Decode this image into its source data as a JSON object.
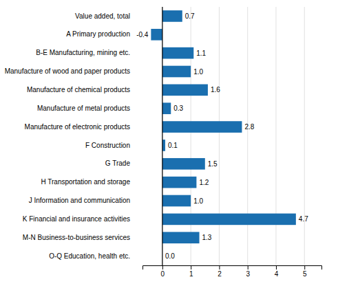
{
  "chart_data": {
    "type": "bar",
    "orientation": "horizontal",
    "categories": [
      "O-Q Education, health etc.",
      "M-N Business-to-business services",
      "K Financial and insurance activities",
      "J Information and communication",
      "H Transportation and storage",
      "G Trade",
      "F Construction",
      "Manufacture of electronic products",
      "Manufacture of metal products",
      "Manufacture of chemical products",
      "Manufacture of wood and paper products",
      "B-E Manufacturing, mining etc.",
      "A Primary production",
      "Value added, total"
    ],
    "values": [
      0.0,
      1.3,
      4.7,
      1.0,
      1.2,
      1.5,
      0.1,
      2.8,
      0.3,
      1.6,
      1.0,
      1.1,
      -0.4,
      0.7
    ],
    "value_labels": [
      "0.0",
      "1.3",
      "4.7",
      "1.0",
      "1.2",
      "1.5",
      "0.1",
      "2.8",
      "0.3",
      "1.6",
      "1.0",
      "1.1",
      "-0.4",
      "0.7"
    ],
    "color": "#1a6faf",
    "xlim": [
      -0.7,
      5.6
    ],
    "xticks": [
      0,
      1,
      2,
      3,
      4,
      5
    ],
    "grid": true,
    "data_labels": true
  }
}
